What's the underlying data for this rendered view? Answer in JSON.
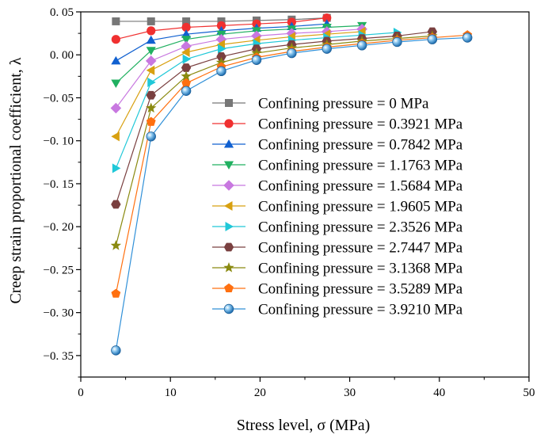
{
  "chart_data": {
    "type": "line",
    "xlabel": "Stress level, σ (MPa)",
    "ylabel": "Creep strain proportional coefficient, λ",
    "xlim": [
      0,
      50
    ],
    "ylim": [
      -0.375,
      0.05
    ],
    "xticks": [
      0,
      10,
      20,
      30,
      40,
      50
    ],
    "xtick_labels": [
      "0",
      "10",
      "20",
      "30",
      "40",
      "50"
    ],
    "yticks": [
      0.05,
      0.0,
      -0.05,
      -0.1,
      -0.15,
      -0.2,
      -0.25,
      -0.3,
      -0.35
    ],
    "ytick_labels": [
      "0. 05",
      "0. 00",
      "−0. 05",
      "−0. 10",
      "−0. 15",
      "−0. 20",
      "−0. 25",
      "−0. 30",
      "−0. 35"
    ],
    "grid": false,
    "legend_position": "center-right",
    "series": [
      {
        "name": "Confining pressure = 0 MPa",
        "color": "#777777",
        "marker": "square",
        "x": [
          3.92,
          7.84,
          11.76,
          15.68,
          19.61,
          23.53,
          27.45
        ],
        "y": [
          0.039,
          0.039,
          0.039,
          0.039,
          0.04,
          0.041,
          0.043
        ]
      },
      {
        "name": "Confining pressure = 0.3921 MPa",
        "color": "#f03030",
        "marker": "circle",
        "x": [
          3.92,
          7.84,
          11.76,
          15.68,
          19.61,
          23.53,
          27.45
        ],
        "y": [
          0.018,
          0.028,
          0.032,
          0.034,
          0.036,
          0.038,
          0.043
        ]
      },
      {
        "name": "Confining pressure = 0.7842 MPa",
        "color": "#1060d0",
        "marker": "triangle-up",
        "x": [
          3.92,
          7.84,
          11.76,
          15.68,
          19.61,
          23.53,
          27.45
        ],
        "y": [
          -0.007,
          0.017,
          0.024,
          0.028,
          0.031,
          0.033,
          0.036
        ]
      },
      {
        "name": "Confining pressure = 1.1763 MPa",
        "color": "#20b060",
        "marker": "triangle-down",
        "x": [
          3.92,
          7.84,
          11.76,
          15.68,
          19.61,
          23.53,
          27.45,
          31.37
        ],
        "y": [
          -0.033,
          0.005,
          0.018,
          0.024,
          0.028,
          0.03,
          0.032,
          0.034
        ]
      },
      {
        "name": "Confining pressure = 1.5684 MPa",
        "color": "#c878e0",
        "marker": "diamond",
        "x": [
          3.92,
          7.84,
          11.76,
          15.68,
          19.61,
          23.53,
          27.45,
          31.37
        ],
        "y": [
          -0.062,
          -0.007,
          0.01,
          0.018,
          0.022,
          0.025,
          0.027,
          0.03
        ]
      },
      {
        "name": "Confining pressure = 1.9605 MPa",
        "color": "#d8a010",
        "marker": "triangle-left",
        "x": [
          3.92,
          7.84,
          11.76,
          15.68,
          19.61,
          23.53,
          27.45,
          31.37
        ],
        "y": [
          -0.095,
          -0.018,
          0.003,
          0.012,
          0.017,
          0.021,
          0.024,
          0.027
        ]
      },
      {
        "name": "Confining pressure = 2.3526 MPa",
        "color": "#20c8d8",
        "marker": "triangle-right",
        "x": [
          3.92,
          7.84,
          11.76,
          15.68,
          19.61,
          23.53,
          27.45,
          31.37,
          35.29
        ],
        "y": [
          -0.132,
          -0.032,
          -0.005,
          0.007,
          0.013,
          0.017,
          0.02,
          0.023,
          0.026
        ]
      },
      {
        "name": "Confining pressure = 2.7447 MPa",
        "color": "#7a4040",
        "marker": "hexagon",
        "x": [
          3.92,
          7.84,
          11.76,
          15.68,
          19.61,
          23.53,
          27.45,
          31.37,
          35.29,
          39.21
        ],
        "y": [
          -0.174,
          -0.047,
          -0.015,
          -0.002,
          0.007,
          0.012,
          0.016,
          0.019,
          0.022,
          0.027
        ]
      },
      {
        "name": "Confining pressure = 3.1368 MPa",
        "color": "#8a8a10",
        "marker": "star",
        "x": [
          3.92,
          7.84,
          11.76,
          15.68,
          19.61,
          23.53,
          27.45,
          31.37,
          35.29,
          39.21
        ],
        "y": [
          -0.222,
          -0.062,
          -0.025,
          -0.009,
          0.002,
          0.008,
          0.012,
          0.016,
          0.019,
          0.022
        ]
      },
      {
        "name": "Confining pressure = 3.5289 MPa",
        "color": "#ff7010",
        "marker": "pentagon",
        "x": [
          3.92,
          7.84,
          11.76,
          15.68,
          19.61,
          23.53,
          27.45,
          31.37,
          35.29,
          39.21,
          43.13
        ],
        "y": [
          -0.278,
          -0.078,
          -0.033,
          -0.014,
          -0.003,
          0.004,
          0.009,
          0.013,
          0.017,
          0.02,
          0.023
        ]
      },
      {
        "name": "Confining pressure = 3.9210 MPa",
        "color": "#3090d8",
        "marker": "sphere",
        "x": [
          3.92,
          7.84,
          11.76,
          15.68,
          19.61,
          23.53,
          27.45,
          31.37,
          35.29,
          39.21,
          43.13
        ],
        "y": [
          -0.344,
          -0.095,
          -0.042,
          -0.019,
          -0.006,
          0.002,
          0.007,
          0.011,
          0.015,
          0.018,
          0.02
        ]
      }
    ]
  }
}
